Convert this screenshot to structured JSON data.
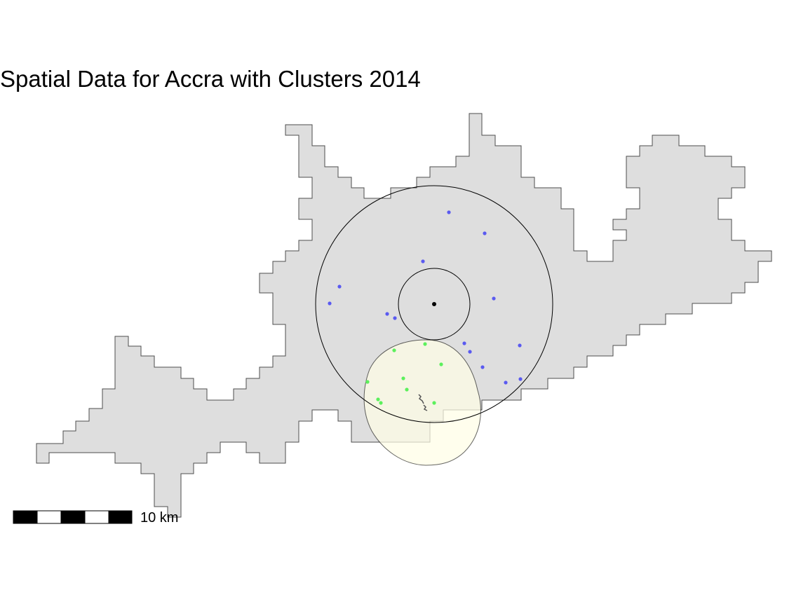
{
  "map": {
    "title": "Spatial Data for Accra with Clusters 2014",
    "scale_bar_label": "10 km",
    "colors": {
      "region_fill": "#dedede",
      "region_stroke": "#4d4d4d",
      "cluster_a_points": "#5a5af0",
      "cluster_b_points": "#5cf05c",
      "cluster_b_buffer_fill": "#fffee6",
      "buffer_stroke": "#000000",
      "center_point": "#000000"
    }
  }
}
